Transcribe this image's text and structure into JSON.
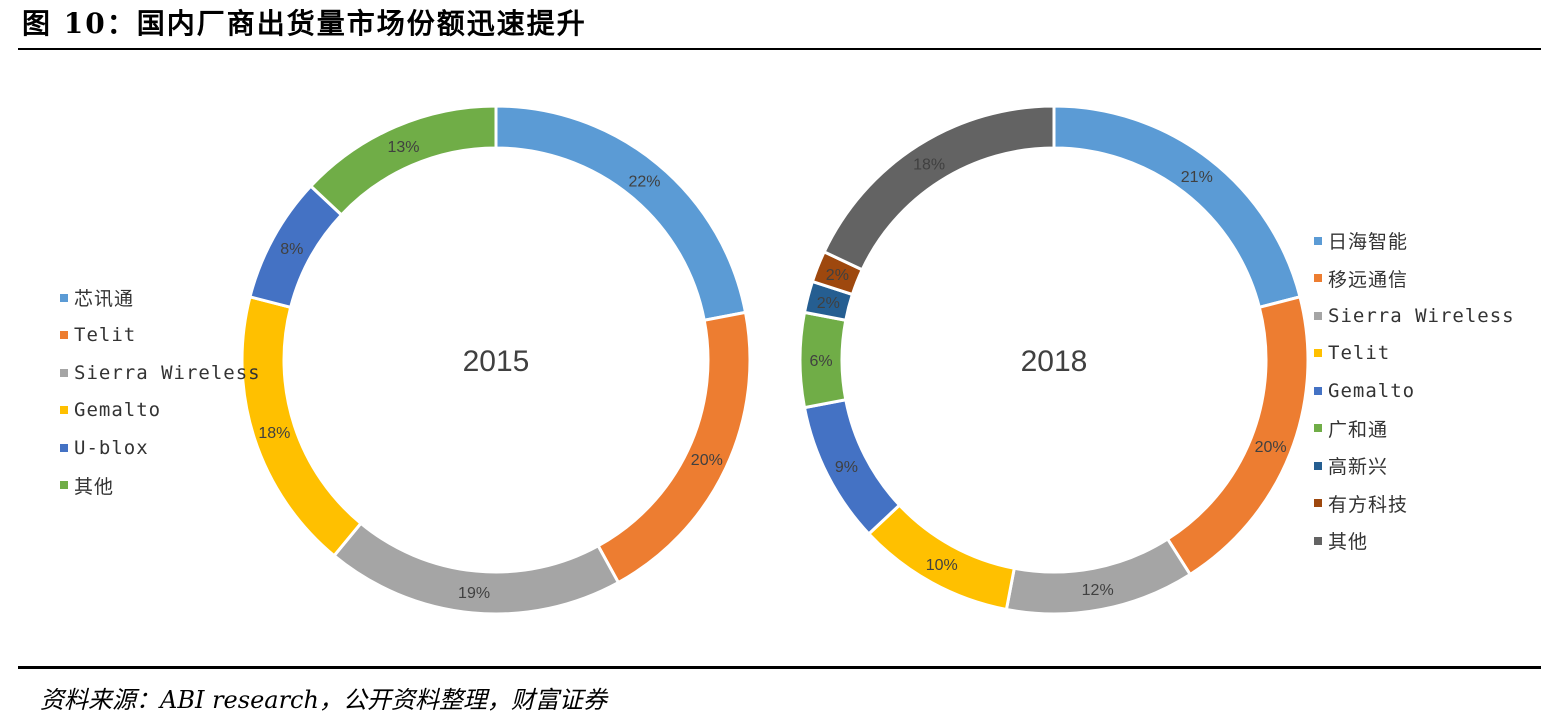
{
  "header": {
    "title": "图 10：国内厂商出货量市场份额迅速提升"
  },
  "footer": {
    "source": "资料来源：ABI research，公开资料整理，财富证券"
  },
  "chart_data": [
    {
      "type": "donut",
      "center_label": "2015",
      "legend_position": "left",
      "categories": [
        "芯讯通",
        "Telit",
        "Sierra Wireless",
        "Gemalto",
        "U-blox",
        "其他"
      ],
      "values": [
        22,
        20,
        19,
        18,
        8,
        13
      ],
      "labels": [
        "22%",
        "20%",
        "19%",
        "18%",
        "8%",
        "13%"
      ],
      "colors": [
        "#5B9BD5",
        "#ED7D31",
        "#A5A5A5",
        "#FFC000",
        "#4472C4",
        "#70AD47"
      ]
    },
    {
      "type": "donut",
      "center_label": "2018",
      "legend_position": "right",
      "categories": [
        "日海智能",
        "移远通信",
        "Sierra Wireless",
        "Telit",
        "Gemalto",
        "广和通",
        "高新兴",
        "有方科技",
        "其他"
      ],
      "values": [
        21,
        20,
        12,
        10,
        9,
        6,
        2,
        2,
        18
      ],
      "labels": [
        "21%",
        "20%",
        "12%",
        "10%",
        "9%",
        "6%",
        "2%",
        "2%",
        "18%"
      ],
      "colors": [
        "#5B9BD5",
        "#ED7D31",
        "#A5A5A5",
        "#FFC000",
        "#4472C4",
        "#70AD47",
        "#255E91",
        "#9E480E",
        "#636363"
      ]
    }
  ]
}
